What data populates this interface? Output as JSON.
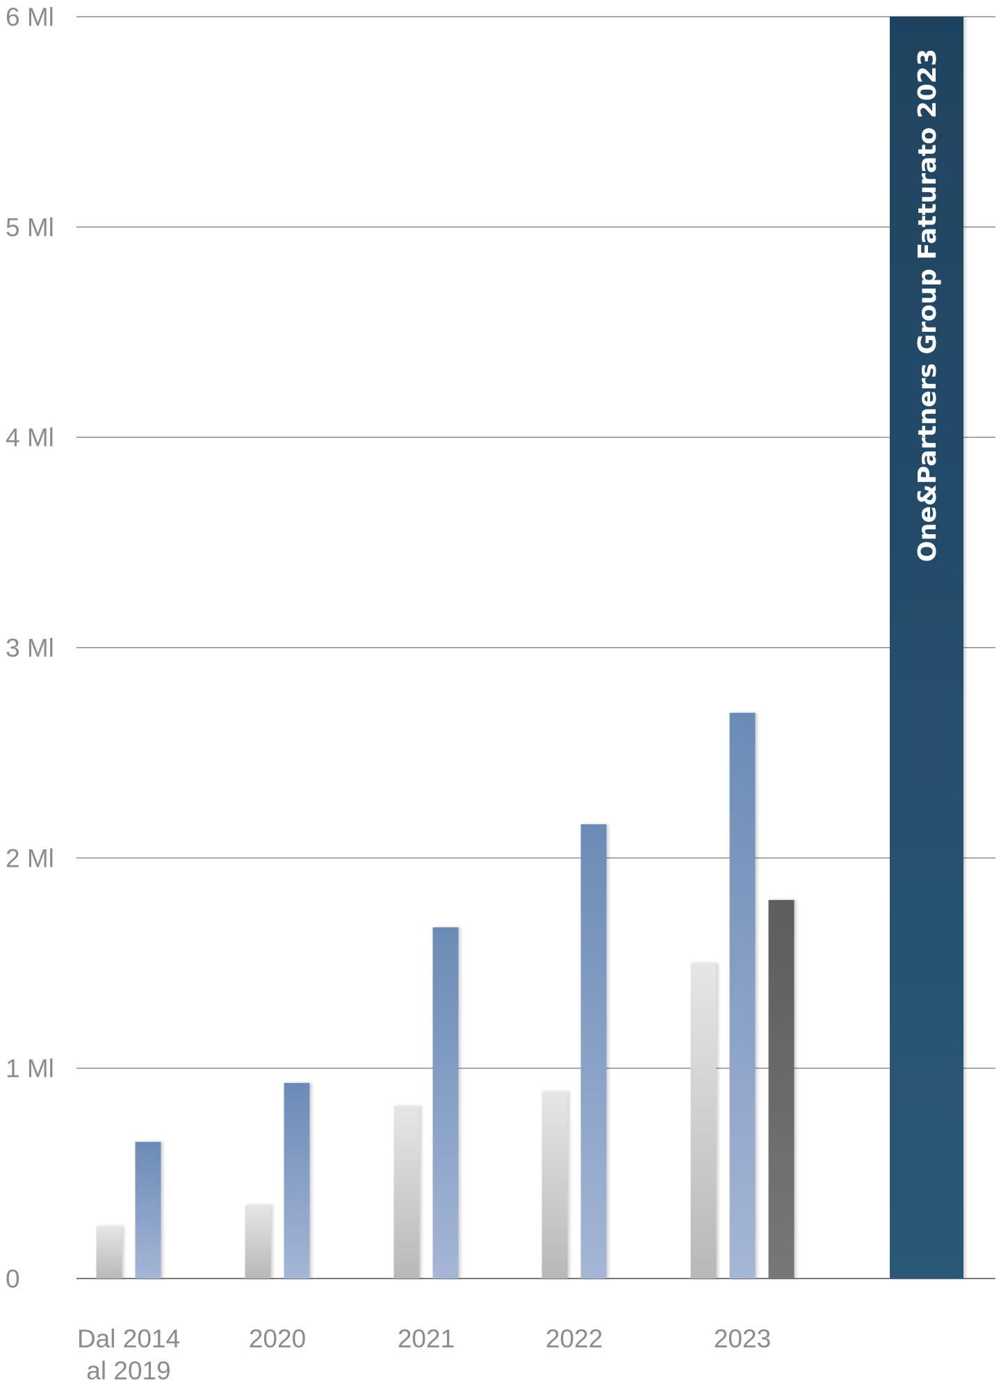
{
  "chart_data": {
    "type": "bar",
    "title": "",
    "xlabel": "",
    "ylabel": "",
    "ylim": [
      0,
      6
    ],
    "yticks": [
      {
        "value": 0,
        "label": "0"
      },
      {
        "value": 1,
        "label": "1 Ml"
      },
      {
        "value": 2,
        "label": "2 Ml"
      },
      {
        "value": 3,
        "label": "3 Ml"
      },
      {
        "value": 4,
        "label": "4 Ml"
      },
      {
        "value": 5,
        "label": "5 Ml"
      },
      {
        "value": 6,
        "label": "6 Ml"
      }
    ],
    "grid": true,
    "legend": "none",
    "categories": [
      {
        "label_lines": [
          "Dal 2014",
          "al 2019"
        ]
      },
      {
        "label_lines": [
          "2020"
        ]
      },
      {
        "label_lines": [
          "2021"
        ]
      },
      {
        "label_lines": [
          "2022"
        ]
      },
      {
        "label_lines": [
          "2023"
        ]
      }
    ],
    "series": [
      {
        "color": "#c8c8c8",
        "values": [
          0.25,
          0.35,
          0.82,
          0.89,
          1.5
        ]
      },
      {
        "color": "#7f9cc2",
        "values": [
          0.65,
          0.93,
          1.67,
          2.16,
          2.69
        ]
      },
      {
        "color": "#666666",
        "values": [
          null,
          null,
          null,
          null,
          1.8
        ]
      }
    ],
    "highlight_bar": {
      "value": 6,
      "label": "One&Partners Group Fatturato 2023",
      "color": "#244d6e"
    }
  }
}
